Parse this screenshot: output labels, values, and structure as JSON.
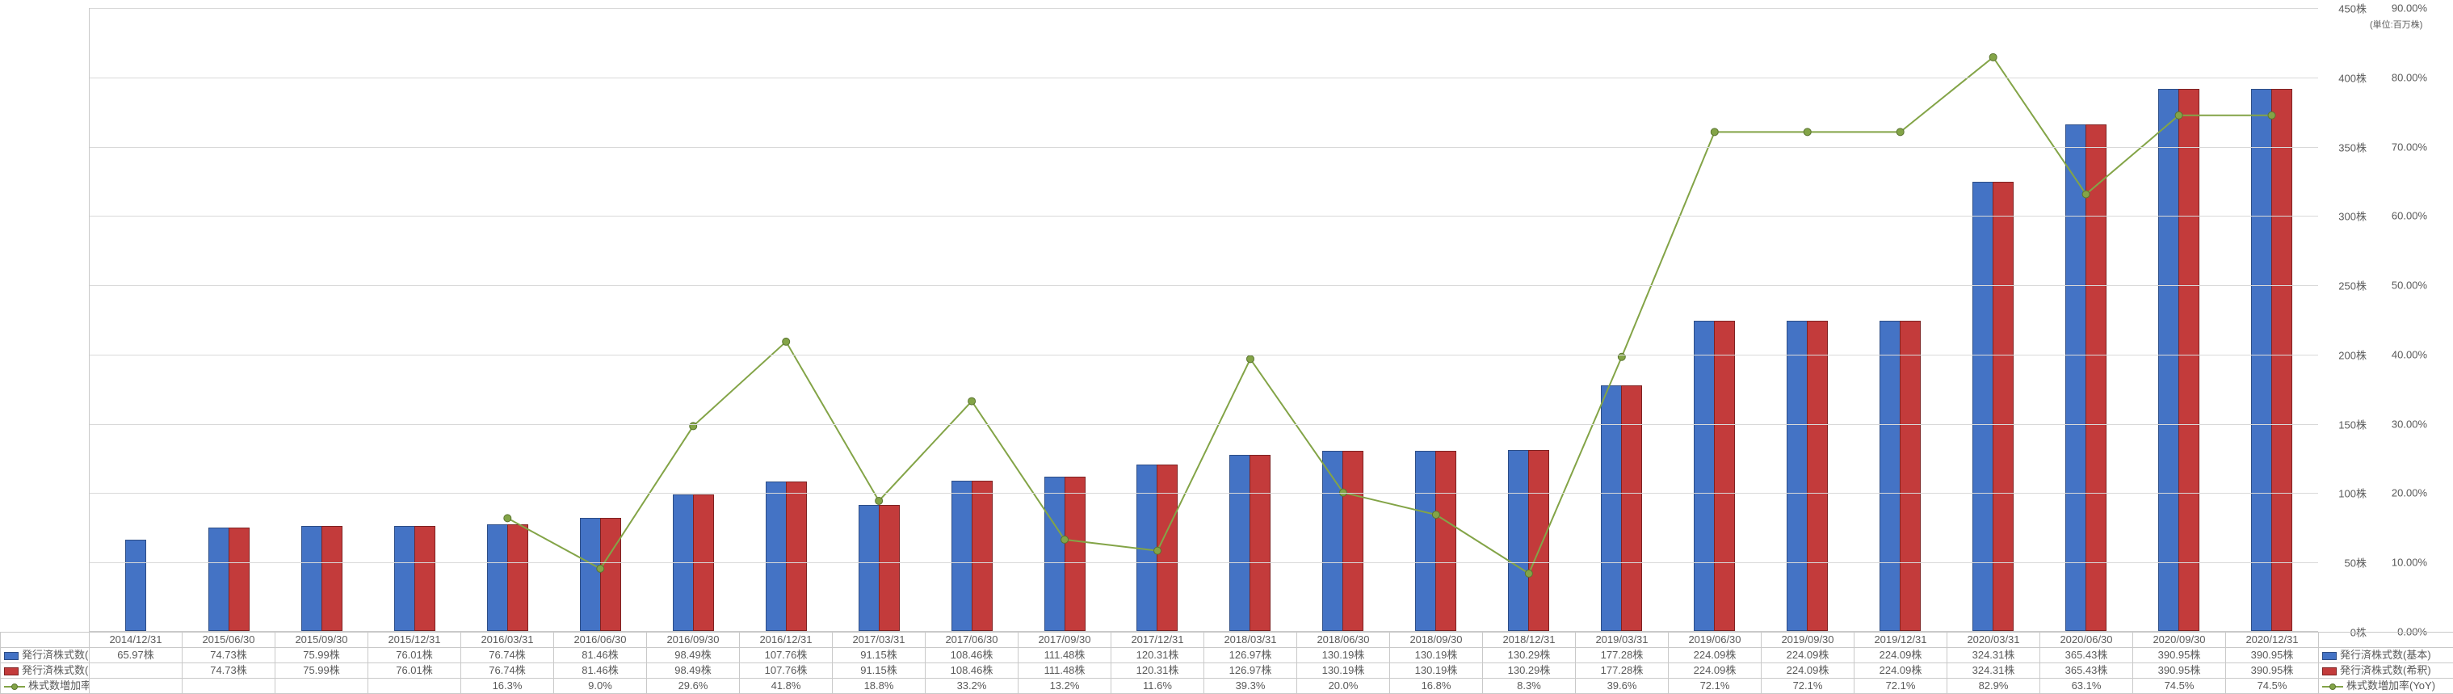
{
  "chart": {
    "type": "bar+line",
    "background_color": "#ffffff",
    "grid_color": "#d9d9d9",
    "border_color": "#c9c9c9",
    "font_size": 13,
    "categories": [
      "2014/12/31",
      "2015/06/30",
      "2015/09/30",
      "2015/12/31",
      "2016/03/31",
      "2016/06/30",
      "2016/09/30",
      "2016/12/31",
      "2017/03/31",
      "2017/06/30",
      "2017/09/30",
      "2017/12/31",
      "2018/03/31",
      "2018/06/30",
      "2018/09/30",
      "2018/12/31",
      "2019/03/31",
      "2019/06/30",
      "2019/09/30",
      "2019/12/31",
      "2020/03/31",
      "2020/06/30",
      "2020/09/30",
      "2020/12/31"
    ],
    "primary_axis": {
      "label_suffix": "株",
      "ylim": [
        0,
        450
      ],
      "tick_step": 50,
      "ticks": [
        "0株",
        "50株",
        "100株",
        "150株",
        "200株",
        "250株",
        "300株",
        "350株",
        "400株",
        "450株"
      ]
    },
    "secondary_axis": {
      "label_suffix": "%",
      "ylim": [
        0,
        90
      ],
      "tick_step": 10,
      "ticks": [
        "0.00%",
        "10.00%",
        "20.00%",
        "30.00%",
        "40.00%",
        "50.00%",
        "60.00%",
        "70.00%",
        "80.00%",
        "90.00%"
      ]
    },
    "unit_note": "(単位:百万株)",
    "series": {
      "basic": {
        "label": "発行済株式数(基本)",
        "color": "#4473c5",
        "border": "#2d4d86",
        "values": [
          65.97,
          74.73,
          75.99,
          76.01,
          76.74,
          81.46,
          98.49,
          107.76,
          91.15,
          108.46,
          111.48,
          120.31,
          126.97,
          130.19,
          130.19,
          130.29,
          177.28,
          224.09,
          224.09,
          224.09,
          324.31,
          365.43,
          390.95,
          390.95
        ],
        "display": [
          "65.97株",
          "74.73株",
          "75.99株",
          "76.01株",
          "76.74株",
          "81.46株",
          "98.49株",
          "107.76株",
          "91.15株",
          "108.46株",
          "111.48株",
          "120.31株",
          "126.97株",
          "130.19株",
          "130.19株",
          "130.29株",
          "177.28株",
          "224.09株",
          "224.09株",
          "224.09株",
          "324.31株",
          "365.43株",
          "390.95株",
          "390.95株"
        ]
      },
      "diluted": {
        "label": "発行済株式数(希釈)",
        "color": "#c33b3b",
        "border": "#7e2222",
        "values": [
          null,
          74.73,
          75.99,
          76.01,
          76.74,
          81.46,
          98.49,
          107.76,
          91.15,
          108.46,
          111.48,
          120.31,
          126.97,
          130.19,
          130.19,
          130.29,
          177.28,
          224.09,
          224.09,
          224.09,
          324.31,
          365.43,
          390.95,
          390.95
        ],
        "display": [
          "",
          "74.73株",
          "75.99株",
          "76.01株",
          "76.74株",
          "81.46株",
          "98.49株",
          "107.76株",
          "91.15株",
          "108.46株",
          "111.48株",
          "120.31株",
          "126.97株",
          "130.19株",
          "130.19株",
          "130.29株",
          "177.28株",
          "224.09株",
          "224.09株",
          "224.09株",
          "324.31株",
          "365.43株",
          "390.95株",
          "390.95株"
        ]
      },
      "yoy": {
        "label": "株式数増加率(YoY)",
        "color": "#83a447",
        "marker_border": "#5a7430",
        "line_width": 2,
        "marker_size": 9,
        "values": [
          null,
          null,
          null,
          null,
          16.3,
          9.0,
          29.6,
          41.8,
          18.8,
          33.2,
          13.2,
          11.6,
          39.3,
          20.0,
          16.8,
          8.3,
          39.6,
          72.1,
          72.1,
          72.1,
          82.9,
          63.1,
          74.5,
          74.5
        ],
        "display": [
          "",
          "",
          "",
          "",
          "16.3%",
          "9.0%",
          "29.6%",
          "41.8%",
          "18.8%",
          "33.2%",
          "13.2%",
          "11.6%",
          "39.3%",
          "20.0%",
          "16.8%",
          "8.3%",
          "39.6%",
          "72.1%",
          "72.1%",
          "72.1%",
          "82.9%",
          "63.1%",
          "74.5%",
          "74.5%"
        ]
      }
    },
    "right_legend": {
      "basic": "発行済株式数(基本)",
      "diluted": "発行済株式数(希釈)",
      "yoy": "株式数増加率(YoY)"
    }
  }
}
